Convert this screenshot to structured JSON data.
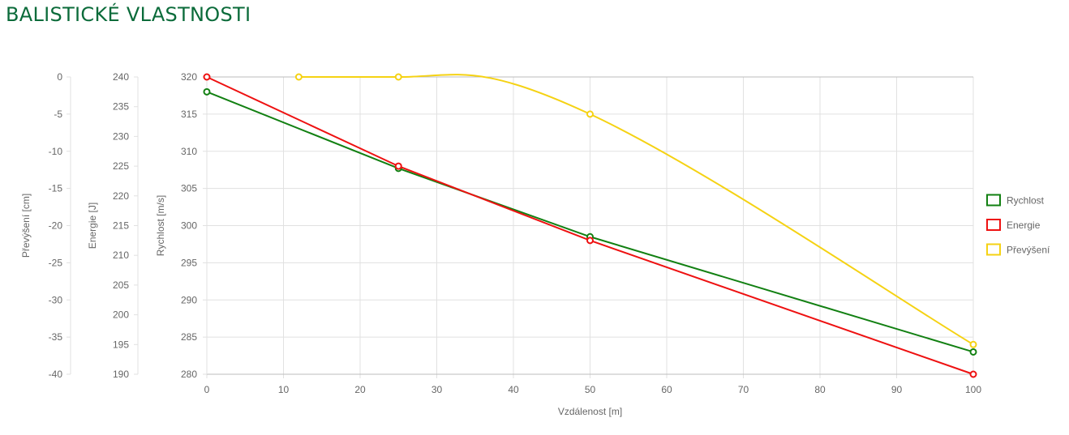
{
  "page": {
    "title": "BALISTICKÉ VLASTNOSTI"
  },
  "chart_data": {
    "type": "line",
    "x": [
      0,
      25,
      50,
      100
    ],
    "xlabel": "Vzdálenost [m]",
    "xlim": [
      0,
      100
    ],
    "xticks": [
      0,
      10,
      20,
      30,
      40,
      50,
      60,
      70,
      80,
      90,
      100
    ],
    "grid": true,
    "legend_position": "right",
    "axes": [
      {
        "id": "velocity",
        "label": "Rychlost [m/s]",
        "range": [
          280,
          320
        ],
        "ticks": [
          320,
          315,
          310,
          305,
          300,
          295,
          290,
          285,
          280
        ]
      },
      {
        "id": "energy",
        "label": "Energie [J]",
        "range": [
          190,
          240
        ],
        "ticks": [
          240,
          235,
          230,
          225,
          220,
          215,
          210,
          205,
          200,
          195,
          190
        ]
      },
      {
        "id": "drop",
        "label": "Převýšení [cm]",
        "range": [
          -40,
          0
        ],
        "ticks": [
          0,
          -5,
          -10,
          -15,
          -20,
          -25,
          -30,
          -35,
          -40
        ]
      }
    ],
    "series": [
      {
        "name": "Rychlost",
        "axis": "velocity",
        "color": "#128012",
        "curve": "straight",
        "points": [
          [
            0,
            318
          ],
          [
            25,
            307.7
          ],
          [
            50,
            298.5
          ],
          [
            100,
            283
          ]
        ]
      },
      {
        "name": "Energie",
        "axis": "energy",
        "color": "#ee1111",
        "curve": "straight",
        "points": [
          [
            0,
            240
          ],
          [
            25,
            225
          ],
          [
            50,
            212.5
          ],
          [
            100,
            190
          ]
        ]
      },
      {
        "name": "Převýšení",
        "axis": "drop",
        "color": "#f5d213",
        "curve": "smooth",
        "points": [
          [
            12,
            0
          ],
          [
            25,
            0
          ],
          [
            50,
            -5
          ],
          [
            100,
            -36
          ]
        ]
      }
    ]
  }
}
